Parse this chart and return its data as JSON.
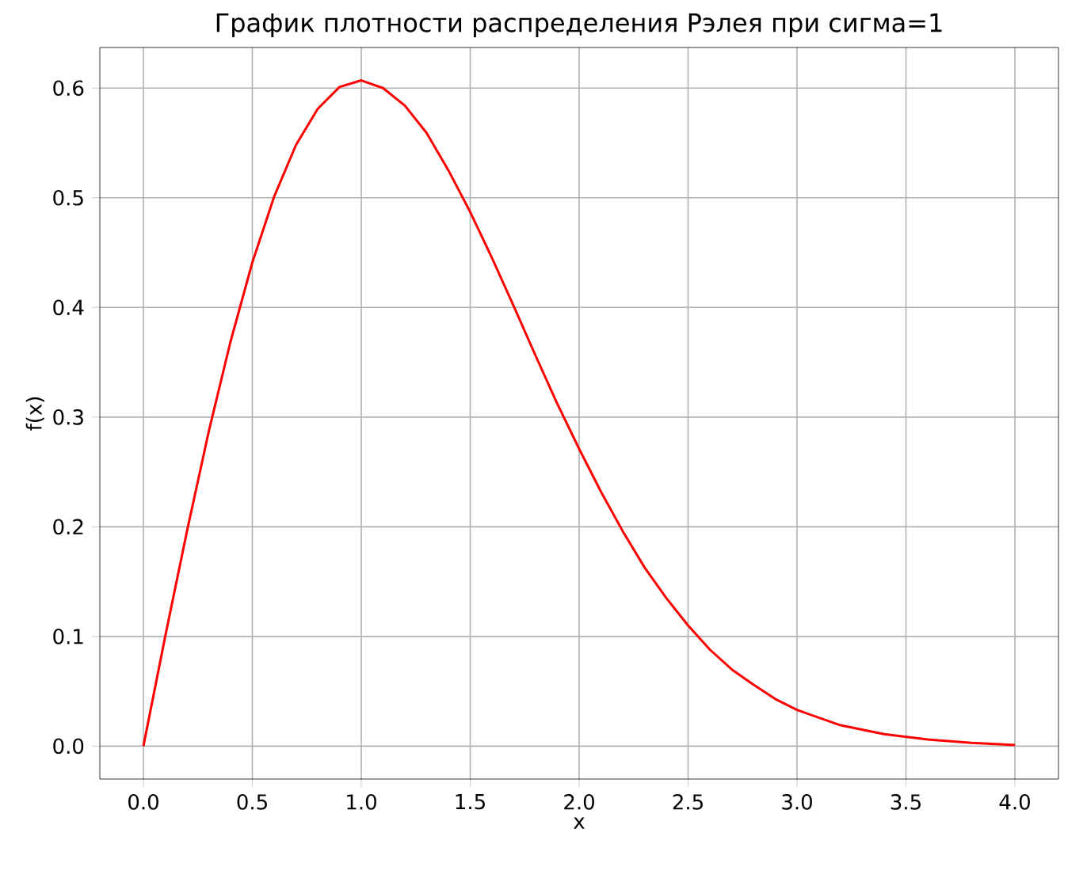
{
  "chart_data": {
    "type": "line",
    "title": "График плотности распределения Рэлея при сигма=1",
    "xlabel": "x",
    "ylabel": "f(x)",
    "x": [
      0,
      0.1,
      0.2,
      0.3,
      0.4,
      0.5,
      0.6,
      0.7,
      0.8,
      0.9,
      1.0,
      1.1,
      1.2,
      1.3,
      1.4,
      1.5,
      1.6,
      1.7,
      1.8,
      1.9,
      2.0,
      2.1,
      2.2,
      2.3,
      2.4,
      2.5,
      2.6,
      2.7,
      2.8,
      2.9,
      3.0,
      3.2,
      3.4,
      3.6,
      3.8,
      4.0
    ],
    "series": [
      {
        "color": "#ff0000",
        "values": [
          0,
          0.1,
          0.196,
          0.287,
          0.369,
          0.441,
          0.501,
          0.548,
          0.581,
          0.601,
          0.607,
          0.6,
          0.584,
          0.559,
          0.525,
          0.487,
          0.445,
          0.401,
          0.356,
          0.312,
          0.271,
          0.232,
          0.196,
          0.163,
          0.135,
          0.11,
          0.088,
          0.07,
          0.056,
          0.043,
          0.033,
          0.019,
          0.011,
          0.006,
          0.003,
          0.001
        ]
      }
    ],
    "xlim": [
      -0.2,
      4.2
    ],
    "ylim": [
      -0.03,
      0.637
    ],
    "xticks": [
      {
        "value": 0,
        "label": "0.0"
      },
      0.5,
      {
        "value": 1,
        "label": "1.0"
      },
      1.5,
      {
        "value": 2,
        "label": "2.0"
      },
      2.5,
      {
        "value": 3,
        "label": "3.0"
      },
      3.5,
      {
        "value": 4,
        "label": "4.0"
      }
    ],
    "yticks": [
      {
        "value": 0,
        "label": "0.0"
      },
      0.1,
      0.2,
      0.3,
      0.4,
      0.5,
      0.6
    ],
    "grid": true,
    "marker": "none",
    "line_style": "solid"
  }
}
